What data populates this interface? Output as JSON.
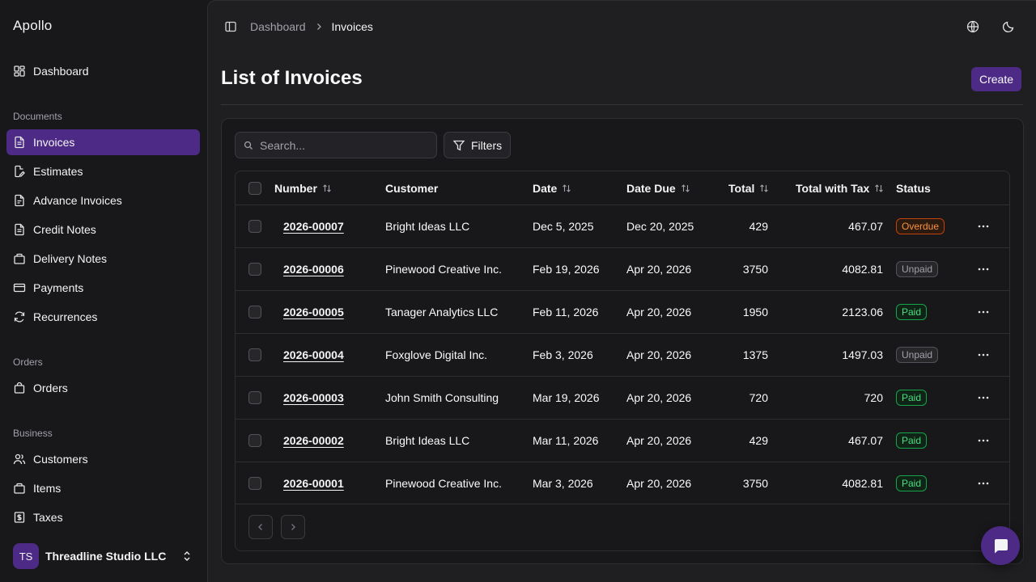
{
  "app": {
    "brand": "Apollo"
  },
  "sidebar": {
    "dashboard": "Dashboard",
    "groups": {
      "documents": "Documents",
      "orders": "Orders",
      "business": "Business"
    },
    "documents": [
      {
        "label": "Invoices",
        "icon": "file-text-icon",
        "active": true
      },
      {
        "label": "Estimates",
        "icon": "file-edit-icon"
      },
      {
        "label": "Advance Invoices",
        "icon": "file-icon"
      },
      {
        "label": "Credit Notes",
        "icon": "file-minus-icon"
      },
      {
        "label": "Delivery Notes",
        "icon": "package-icon"
      },
      {
        "label": "Payments",
        "icon": "credit-card-icon"
      },
      {
        "label": "Recurrences",
        "icon": "refresh-icon"
      }
    ],
    "orders": [
      {
        "label": "Orders",
        "icon": "shopping-bag-icon"
      }
    ],
    "business": [
      {
        "label": "Customers",
        "icon": "users-icon"
      },
      {
        "label": "Items",
        "icon": "package-icon"
      },
      {
        "label": "Taxes",
        "icon": "receipt-icon"
      }
    ],
    "org": {
      "initials": "TS",
      "name": "Threadline Studio LLC"
    }
  },
  "header": {
    "breadcrumb": [
      "Dashboard",
      "Invoices"
    ]
  },
  "page": {
    "title": "List of Invoices",
    "create_label": "Create",
    "search_placeholder": "Search...",
    "filters_label": "Filters"
  },
  "table": {
    "columns": [
      "Number",
      "Customer",
      "Date",
      "Date Due",
      "Total",
      "Total with Tax",
      "Status"
    ],
    "rows": [
      {
        "number": "2026-00007",
        "customer": "Bright Ideas LLC",
        "date": "Dec 5, 2025",
        "due": "Dec 20, 2025",
        "total": "429",
        "total_tax": "467.07",
        "status": "Overdue"
      },
      {
        "number": "2026-00006",
        "customer": "Pinewood Creative Inc.",
        "date": "Feb 19, 2026",
        "due": "Apr 20, 2026",
        "total": "3750",
        "total_tax": "4082.81",
        "status": "Unpaid"
      },
      {
        "number": "2026-00005",
        "customer": "Tanager Analytics LLC",
        "date": "Feb 11, 2026",
        "due": "Apr 20, 2026",
        "total": "1950",
        "total_tax": "2123.06",
        "status": "Paid"
      },
      {
        "number": "2026-00004",
        "customer": "Foxglove Digital Inc.",
        "date": "Feb 3, 2026",
        "due": "Apr 20, 2026",
        "total": "1375",
        "total_tax": "1497.03",
        "status": "Unpaid"
      },
      {
        "number": "2026-00003",
        "customer": "John Smith Consulting",
        "date": "Mar 19, 2026",
        "due": "Apr 20, 2026",
        "total": "720",
        "total_tax": "720",
        "status": "Paid"
      },
      {
        "number": "2026-00002",
        "customer": "Bright Ideas LLC",
        "date": "Mar 11, 2026",
        "due": "Apr 20, 2026",
        "total": "429",
        "total_tax": "467.07",
        "status": "Paid"
      },
      {
        "number": "2026-00001",
        "customer": "Pinewood Creative Inc.",
        "date": "Mar 3, 2026",
        "due": "Apr 20, 2026",
        "total": "3750",
        "total_tax": "4082.81",
        "status": "Paid"
      }
    ]
  },
  "colors": {
    "accent": "#4c2a85",
    "overdue": "#fb923c",
    "paid": "#4ade80",
    "unpaid": "#a1a1aa"
  }
}
